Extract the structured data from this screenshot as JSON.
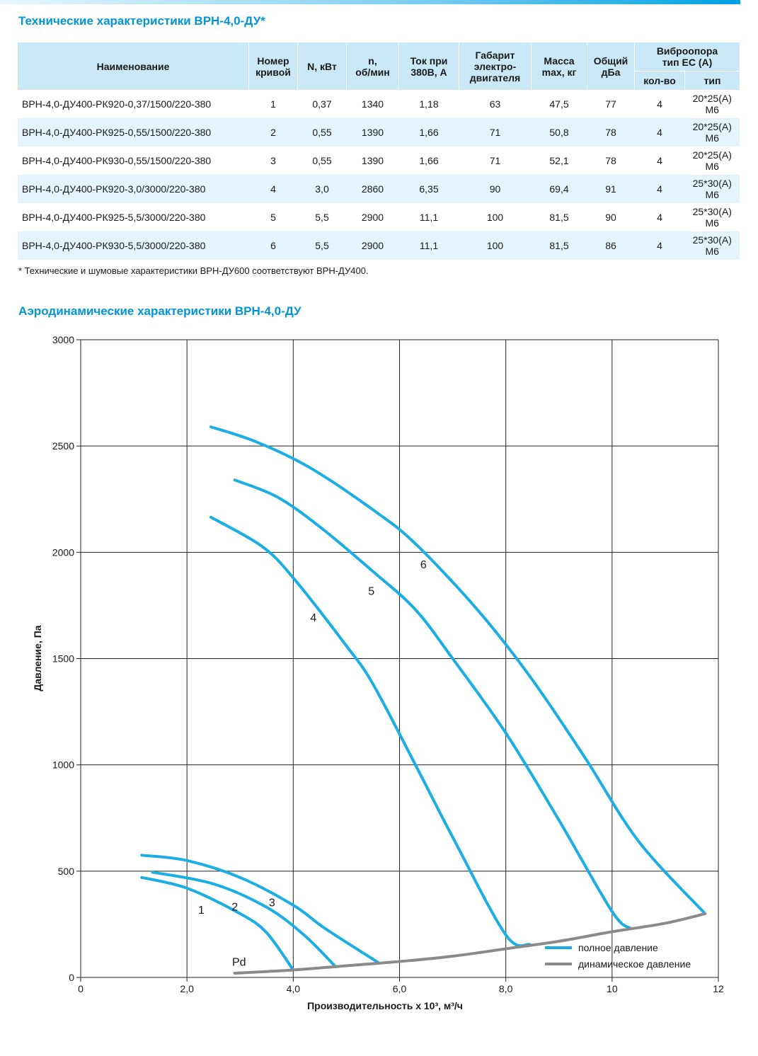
{
  "colors": {
    "accent": "#0095d9",
    "header_bg": "#c9e9f8",
    "row_alt": "#e4f4fc",
    "curve_full": "#1aaee5",
    "curve_dyn": "#8a8a8a"
  },
  "heading_table": "Технические характеристики ВРН-4,0-ДУ*",
  "heading_chart": "Аэродинамические характеристики ВРН-4,0-ДУ",
  "table": {
    "headers": {
      "name": "Наименование",
      "curve_no": [
        "Номер",
        "кривой"
      ],
      "power": "N, кВт",
      "rpm": [
        "n,",
        "об/мин"
      ],
      "current": [
        "Ток при",
        "380В, А"
      ],
      "motor_size": [
        "Габарит",
        "электро-",
        "двигателя"
      ],
      "mass": [
        "Масса",
        "max, кг"
      ],
      "noise": [
        "Общий",
        "дБа"
      ],
      "vibro": [
        "Виброопора",
        "тип ЕС (А)"
      ],
      "vibro_qty": "кол-во",
      "vibro_type": "тип"
    },
    "rows": [
      [
        "ВРН-4,0-ДУ400-РК920-0,37/1500/220-380",
        "1",
        "0,37",
        "1340",
        "1,18",
        "63",
        "47,5",
        "77",
        "4",
        "20*25(А) М6"
      ],
      [
        "ВРН-4,0-ДУ400-РК925-0,55/1500/220-380",
        "2",
        "0,55",
        "1390",
        "1,66",
        "71",
        "50,8",
        "78",
        "4",
        "20*25(А) М6"
      ],
      [
        "ВРН-4,0-ДУ400-РК930-0,55/1500/220-380",
        "3",
        "0,55",
        "1390",
        "1,66",
        "71",
        "52,1",
        "78",
        "4",
        "20*25(А) М6"
      ],
      [
        "ВРН-4,0-ДУ400-РК920-3,0/3000/220-380",
        "4",
        "3,0",
        "2860",
        "6,35",
        "90",
        "69,4",
        "91",
        "4",
        "25*30(А) М6"
      ],
      [
        "ВРН-4,0-ДУ400-РК925-5,5/3000/220-380",
        "5",
        "5,5",
        "2900",
        "11,1",
        "100",
        "81,5",
        "90",
        "4",
        "25*30(А) М6"
      ],
      [
        "ВРН-4,0-ДУ400-РК930-5,5/3000/220-380",
        "6",
        "5,5",
        "2900",
        "11,1",
        "100",
        "81,5",
        "86",
        "4",
        "25*30(А) М6"
      ]
    ]
  },
  "footnote": "* Технические и шумовые характеристики ВРН-ДУ600 соответствуют ВРН-ДУ400.",
  "chart_data": {
    "type": "line",
    "xlabel": "Производительность х 10³, м³/ч",
    "ylabel": "Давление, Па",
    "xlim": [
      0,
      12
    ],
    "ylim": [
      0,
      3000
    ],
    "x_ticks": [
      0,
      2,
      4,
      6,
      8,
      10,
      12
    ],
    "x_tick_labels": [
      "0",
      "2,0",
      "4,0",
      "6,0",
      "8,0",
      "10",
      "12"
    ],
    "y_ticks": [
      0,
      500,
      1000,
      1500,
      2000,
      2500,
      3000
    ],
    "y_tick_labels": [
      "0",
      "500",
      "1000",
      "1500",
      "2000",
      "2500",
      "3000"
    ],
    "grid": true,
    "legend_position": "bottom-right",
    "legend": [
      "полное давление",
      "динамическое давление"
    ],
    "series": [
      {
        "label": "1",
        "kind": "full",
        "points": [
          [
            1.15,
            470
          ],
          [
            2.0,
            420
          ],
          [
            3.0,
            300
          ],
          [
            3.5,
            210
          ],
          [
            4.0,
            35
          ]
        ]
      },
      {
        "label": "2",
        "kind": "full",
        "points": [
          [
            1.35,
            495
          ],
          [
            2.5,
            440
          ],
          [
            3.5,
            330
          ],
          [
            4.2,
            200
          ],
          [
            4.8,
            50
          ]
        ]
      },
      {
        "label": "3",
        "kind": "full",
        "points": [
          [
            1.15,
            575
          ],
          [
            2.0,
            550
          ],
          [
            3.0,
            470
          ],
          [
            4.0,
            340
          ],
          [
            4.6,
            230
          ],
          [
            5.6,
            70
          ]
        ]
      },
      {
        "label": "4",
        "kind": "full",
        "points": [
          [
            2.45,
            2165
          ],
          [
            3.4,
            2030
          ],
          [
            4.0,
            1880
          ],
          [
            5.0,
            1560
          ],
          [
            5.5,
            1380
          ],
          [
            6.3,
            1000
          ],
          [
            7.0,
            660
          ],
          [
            8.0,
            200
          ],
          [
            8.45,
            155
          ]
        ]
      },
      {
        "label": "5",
        "kind": "full",
        "points": [
          [
            2.9,
            2340
          ],
          [
            3.7,
            2260
          ],
          [
            4.5,
            2120
          ],
          [
            5.5,
            1910
          ],
          [
            6.3,
            1730
          ],
          [
            7.0,
            1500
          ],
          [
            8.0,
            1150
          ],
          [
            9.0,
            740
          ],
          [
            10.0,
            310
          ],
          [
            10.35,
            230
          ]
        ]
      },
      {
        "label": "6",
        "kind": "full",
        "points": [
          [
            2.45,
            2590
          ],
          [
            3.3,
            2520
          ],
          [
            4.3,
            2400
          ],
          [
            5.5,
            2200
          ],
          [
            6.3,
            2040
          ],
          [
            7.5,
            1720
          ],
          [
            8.5,
            1400
          ],
          [
            9.5,
            1030
          ],
          [
            10.5,
            640
          ],
          [
            11.75,
            300
          ]
        ]
      },
      {
        "label": "Pd",
        "kind": "dynamic",
        "points": [
          [
            2.9,
            20
          ],
          [
            4.0,
            35
          ],
          [
            5.0,
            55
          ],
          [
            6.0,
            75
          ],
          [
            7.0,
            100
          ],
          [
            8.0,
            135
          ],
          [
            9.0,
            170
          ],
          [
            10.0,
            215
          ],
          [
            11.0,
            255
          ],
          [
            11.75,
            300
          ]
        ]
      }
    ],
    "curve_label_positions": [
      {
        "text": "1",
        "x": 2.27,
        "y": 300
      },
      {
        "text": "2",
        "x": 2.9,
        "y": 315
      },
      {
        "text": "3",
        "x": 3.6,
        "y": 335
      },
      {
        "text": "4",
        "x": 4.38,
        "y": 1675
      },
      {
        "text": "5",
        "x": 5.47,
        "y": 1800
      },
      {
        "text": "6",
        "x": 6.45,
        "y": 1925
      },
      {
        "text": "Pd",
        "x": 2.98,
        "y": 55
      }
    ]
  }
}
